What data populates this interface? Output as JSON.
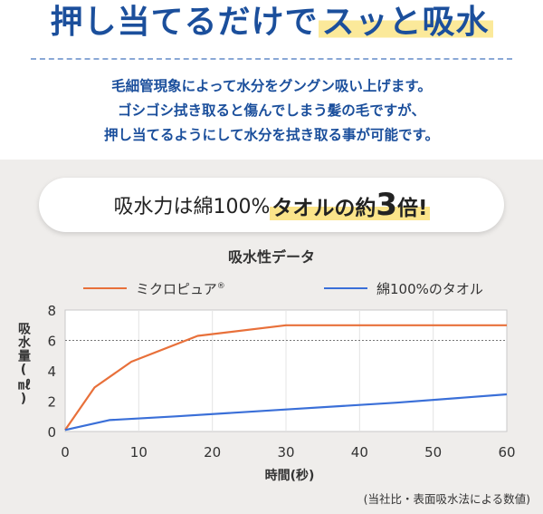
{
  "header": {
    "headline_plain": "押し当てるだけで",
    "headline_mark": "スッと吸水",
    "lines": [
      "毛細管現象によって水分をグングン吸い上げます。",
      "ゴシゴシ拭き取ると傷んでしまう髪の毛ですが、",
      "押し当てるようにして水分を拭き取る事が可能です。"
    ]
  },
  "callout": {
    "part1": "吸水力は綿100%",
    "part2": "タオルの約",
    "number": "3",
    "part3": "倍!"
  },
  "chart_data": {
    "type": "line",
    "title": "吸水性データ",
    "xlabel": "時間(秒)",
    "ylabel": "吸水量(㎖)",
    "xlim": [
      0,
      60
    ],
    "ylim": [
      0,
      8
    ],
    "xticks": [
      0,
      10,
      20,
      30,
      40,
      50,
      60
    ],
    "yticks": [
      0,
      2,
      4,
      6,
      8
    ],
    "reference_line": 6,
    "legend_placement": "top",
    "series": [
      {
        "name": "ミクロピュア",
        "name_mark": "®",
        "color": "#e8703a",
        "points": [
          [
            0,
            0.1
          ],
          [
            4,
            2.9
          ],
          [
            9,
            4.6
          ],
          [
            18,
            6.3
          ],
          [
            30,
            7.0
          ],
          [
            60,
            7.0
          ]
        ]
      },
      {
        "name": "綿100%のタオル",
        "name_mark": "",
        "color": "#3a6fd8",
        "points": [
          [
            0,
            0.1
          ],
          [
            6,
            0.75
          ],
          [
            15,
            1.0
          ],
          [
            30,
            1.45
          ],
          [
            45,
            1.9
          ],
          [
            60,
            2.45
          ]
        ]
      }
    ],
    "footnote": "(当社比・表面吸水法による数値)"
  }
}
